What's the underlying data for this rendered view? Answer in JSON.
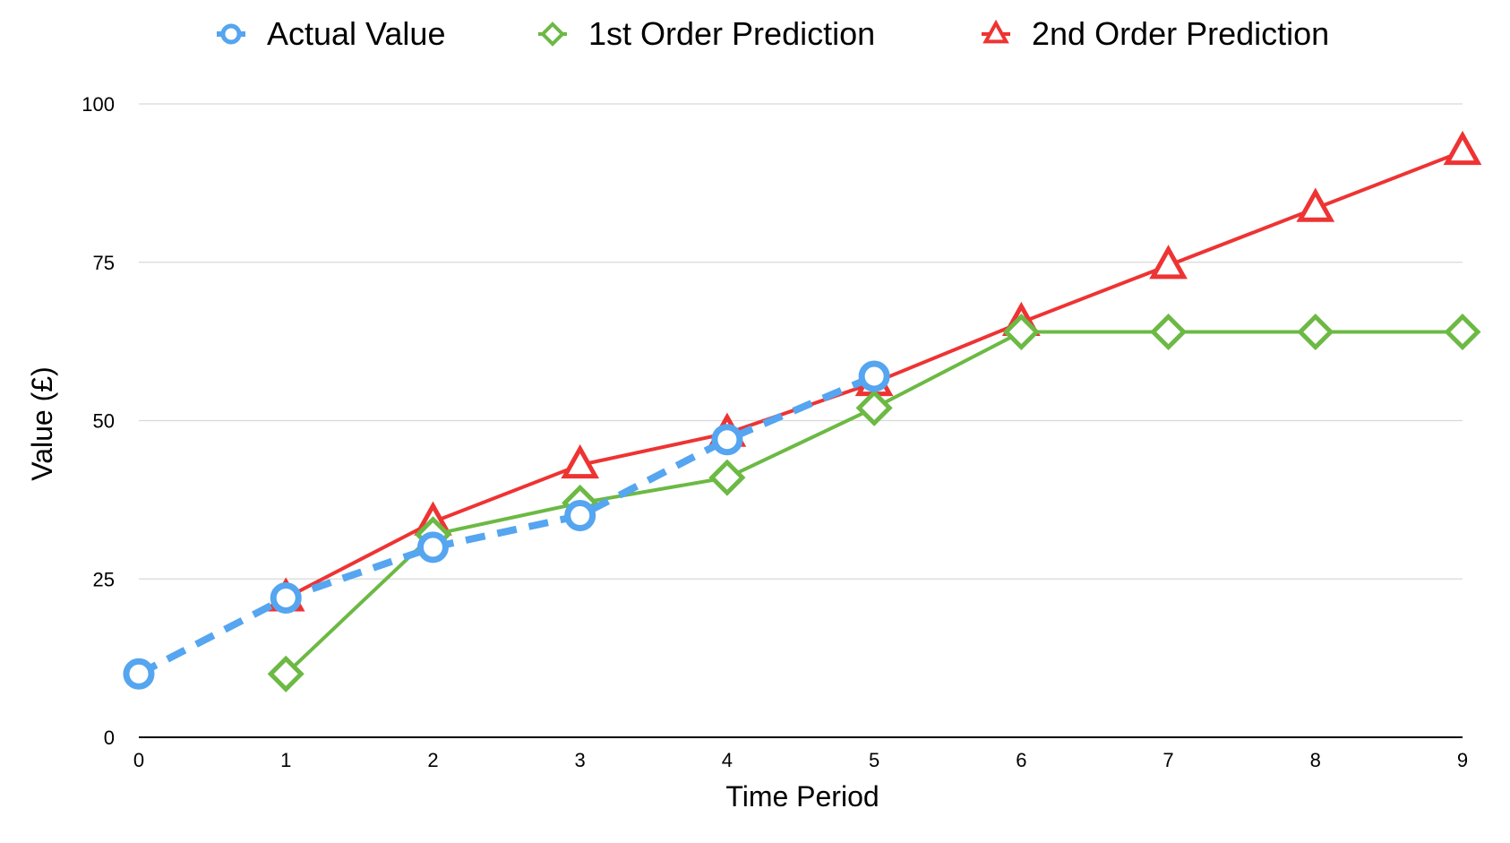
{
  "chart_data": {
    "type": "line",
    "title": "",
    "xlabel": "Time Period",
    "ylabel": "Value (£)",
    "x": [
      0,
      1,
      2,
      3,
      4,
      5,
      6,
      7,
      8,
      9
    ],
    "xlim": [
      0,
      9
    ],
    "ylim": [
      0,
      100
    ],
    "yticks": [
      0,
      25,
      50,
      75,
      100
    ],
    "grid": "horizontal",
    "legend_position": "top",
    "series": [
      {
        "name": "Actual Value",
        "color": "#55a5f0",
        "marker": "circle",
        "line_style": "dashed",
        "x": [
          0,
          1,
          2,
          3,
          4,
          5
        ],
        "values": [
          10,
          22,
          30,
          35,
          47,
          57
        ]
      },
      {
        "name": "1st Order Prediction",
        "color": "#6cb944",
        "marker": "diamond",
        "line_style": "solid",
        "x": [
          1,
          2,
          3,
          4,
          5,
          6,
          7,
          8,
          9
        ],
        "values": [
          10,
          32,
          37,
          41,
          52,
          64,
          64,
          64,
          64
        ]
      },
      {
        "name": "2nd Order Prediction",
        "color": "#ee3333",
        "marker": "triangle",
        "line_style": "solid",
        "x": [
          1,
          2,
          3,
          4,
          5,
          6,
          7,
          8,
          9
        ],
        "values": [
          22,
          34,
          43,
          48,
          56,
          65.5,
          74.5,
          83.5,
          92.5
        ]
      }
    ]
  }
}
